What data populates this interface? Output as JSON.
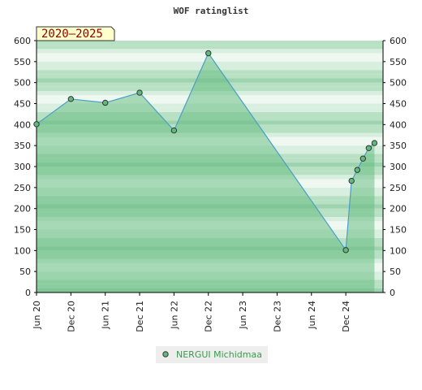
{
  "colors": {
    "band_dark": "#9dd3ae",
    "band_mid": "#b8e0c3",
    "band_light": "#d8efdf",
    "band_pale": "#eef8f1",
    "area_fill": "#5fba7d",
    "line": "#4a9ec8",
    "marker_fill": "#5fba7d",
    "marker_stroke": "#333333",
    "range_fill": "#ffffcc",
    "legend_bg": "#eeeeee",
    "legend_text": "#3a9a4a"
  },
  "chart_data": {
    "type": "area",
    "title": "WOF ratinglist",
    "range_label": "2020–2025",
    "ylim": [
      0,
      600
    ],
    "yticks": [
      0,
      50,
      100,
      150,
      200,
      250,
      300,
      350,
      400,
      450,
      500,
      550,
      600
    ],
    "xlim": [
      0,
      60.5
    ],
    "xticks": [
      {
        "label": "Jun 20",
        "x": 0
      },
      {
        "label": "Dec 20",
        "x": 6
      },
      {
        "label": "Jun 21",
        "x": 12
      },
      {
        "label": "Dec 21",
        "x": 18
      },
      {
        "label": "Jun 22",
        "x": 24
      },
      {
        "label": "Dec 22",
        "x": 30
      },
      {
        "label": "Jun 23",
        "x": 36
      },
      {
        "label": "Dec 23",
        "x": 42
      },
      {
        "label": "Jun 24",
        "x": 48
      },
      {
        "label": "Dec 24",
        "x": 54
      }
    ],
    "series": [
      {
        "name": "NERGUI Michidmaa",
        "points": [
          {
            "x": 0,
            "y": 401
          },
          {
            "x": 6,
            "y": 461
          },
          {
            "x": 12,
            "y": 452
          },
          {
            "x": 18,
            "y": 476
          },
          {
            "x": 24,
            "y": 386
          },
          {
            "x": 30,
            "y": 570
          },
          {
            "x": 54,
            "y": 101
          },
          {
            "x": 55,
            "y": 266
          },
          {
            "x": 56,
            "y": 292
          },
          {
            "x": 57,
            "y": 319
          },
          {
            "x": 58,
            "y": 344
          },
          {
            "x": 59,
            "y": 356
          }
        ]
      }
    ]
  }
}
